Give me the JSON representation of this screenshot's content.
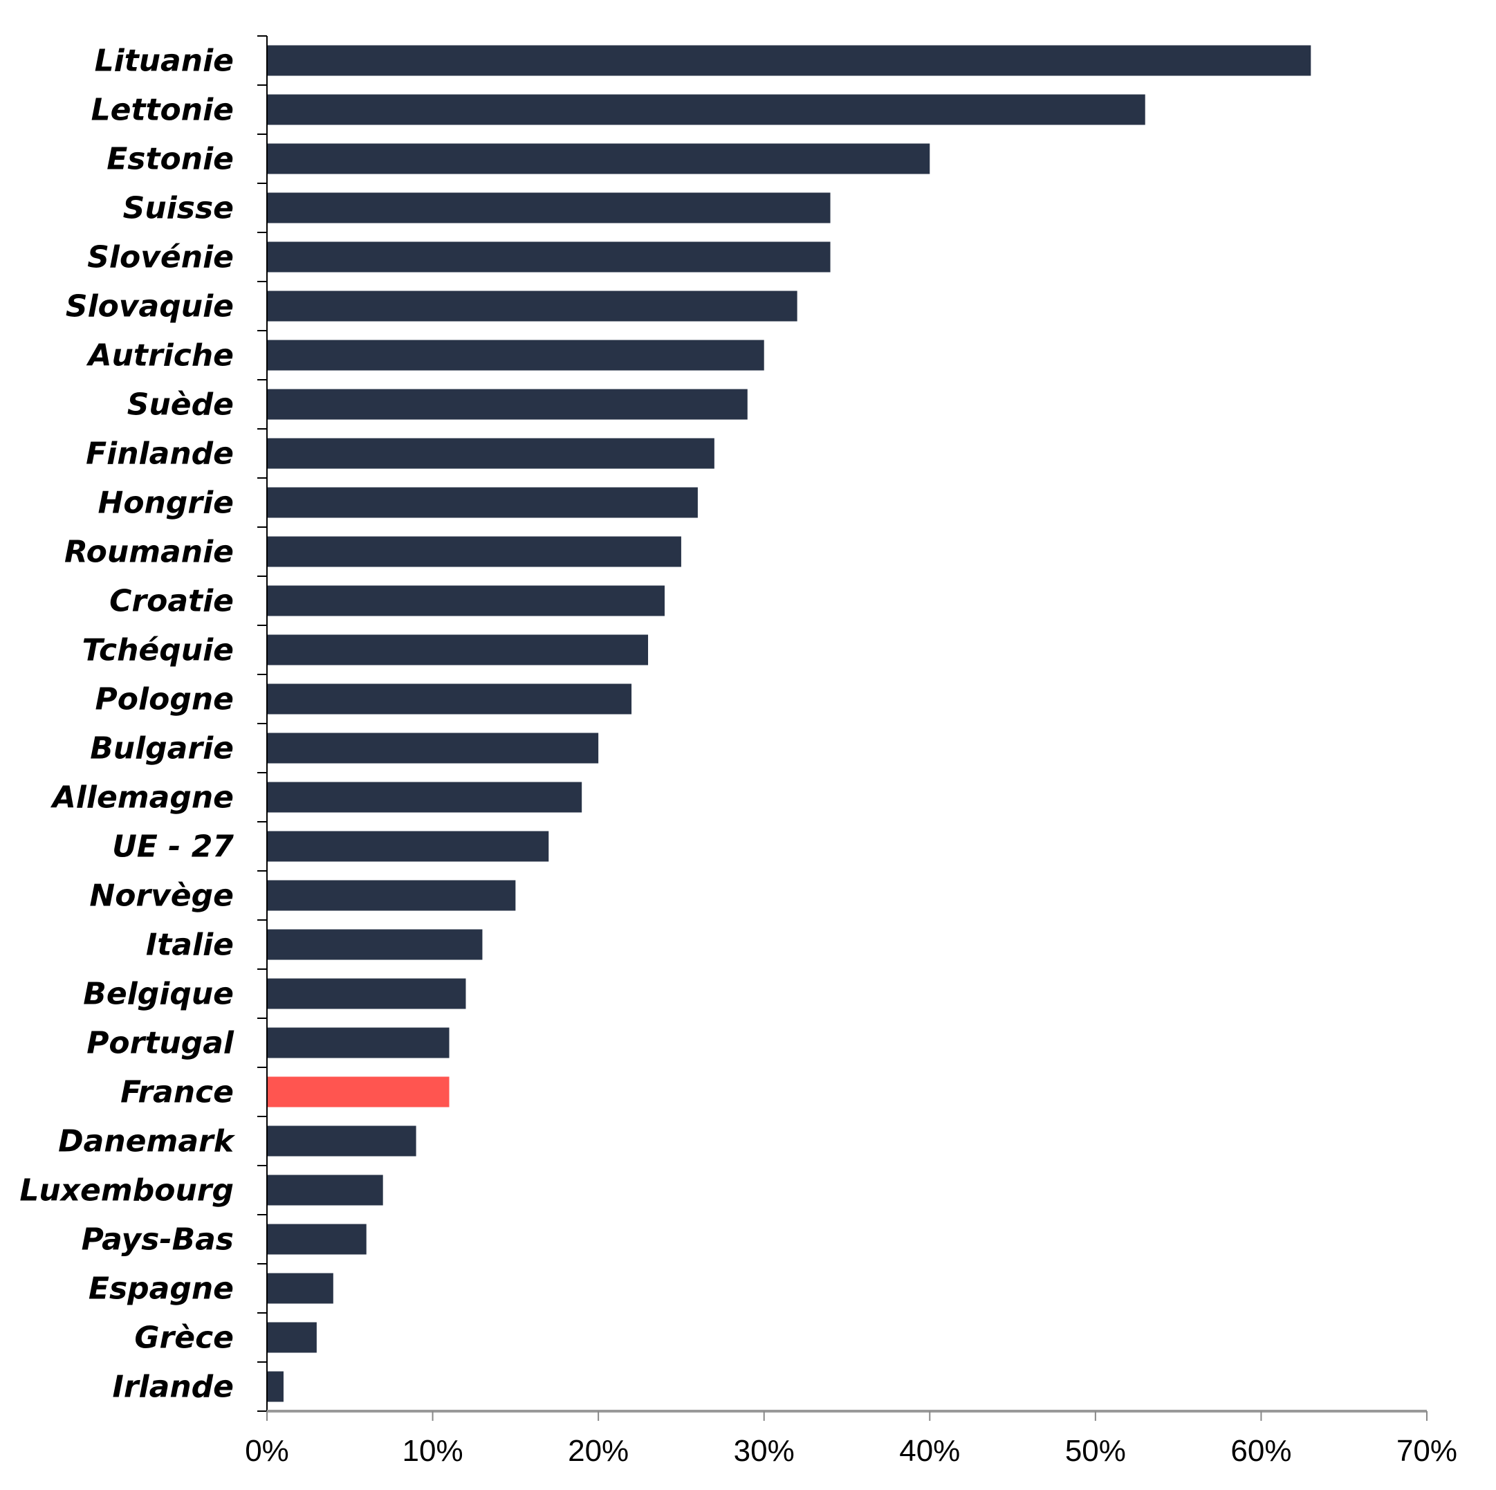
{
  "chart_data": {
    "type": "bar",
    "orientation": "horizontal",
    "title": "",
    "xlabel": "",
    "ylabel": "",
    "xlim": [
      0,
      70
    ],
    "x_ticks": [
      "0%",
      "10%",
      "20%",
      "30%",
      "40%",
      "50%",
      "60%",
      "70%"
    ],
    "x_tick_values": [
      0,
      10,
      20,
      30,
      40,
      50,
      60,
      70
    ],
    "grid": false,
    "legend": "none",
    "unit": "%",
    "categories": [
      "Lituanie",
      "Lettonie",
      "Estonie",
      "Suisse",
      "Slovénie",
      "Slovaquie",
      "Autriche",
      "Suède",
      "Finlande",
      "Hongrie",
      "Roumanie",
      "Croatie",
      "Tchéquie",
      "Pologne",
      "Bulgarie",
      "Allemagne",
      "UE - 27",
      "Norvège",
      "Italie",
      "Belgique",
      "Portugal",
      "France",
      "Danemark",
      "Luxembourg",
      "Pays-Bas",
      "Espagne",
      "Grèce",
      "Irlande"
    ],
    "values": [
      63,
      53,
      40,
      34,
      34,
      32,
      30,
      29,
      27,
      26,
      25,
      24,
      23,
      22,
      20,
      19,
      17,
      15,
      13,
      12,
      11,
      11,
      9,
      7,
      6,
      4,
      3,
      1
    ],
    "highlight": "France",
    "colors": {
      "bar": "#283347",
      "highlight": "#FF5550",
      "axis": "#000000"
    }
  }
}
